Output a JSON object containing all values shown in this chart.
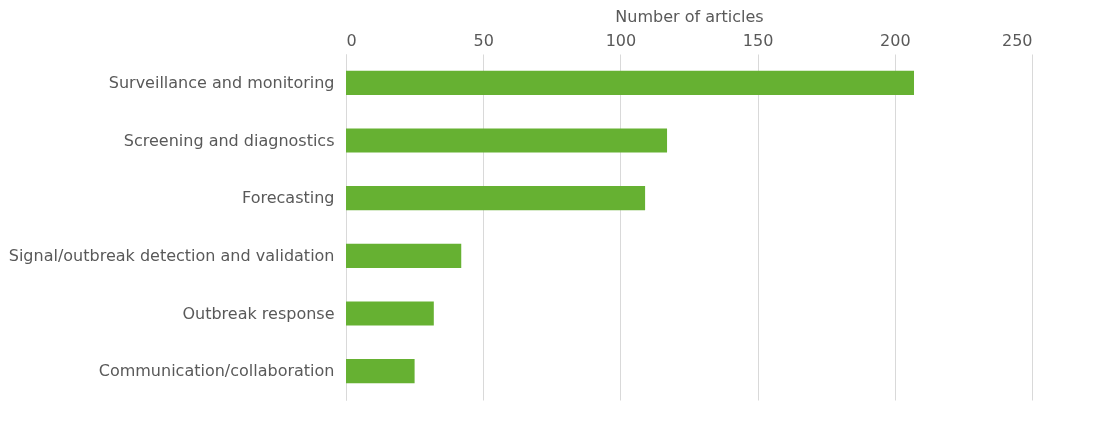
{
  "chart_data": {
    "type": "bar",
    "orientation": "horizontal",
    "xlabel": "Number of articles",
    "categories": [
      "Surveillance and monitoring",
      "Screening and diagnostics",
      "Forecasting",
      "Signal/outbreak detection and validation",
      "Outbreak response",
      "Communication/collaboration"
    ],
    "values": [
      207,
      117,
      109,
      42,
      32,
      25
    ],
    "color": "#66b132",
    "xlim": [
      0,
      250
    ],
    "xticks": [
      0,
      50,
      100,
      150,
      200,
      250
    ],
    "grid": "x"
  }
}
